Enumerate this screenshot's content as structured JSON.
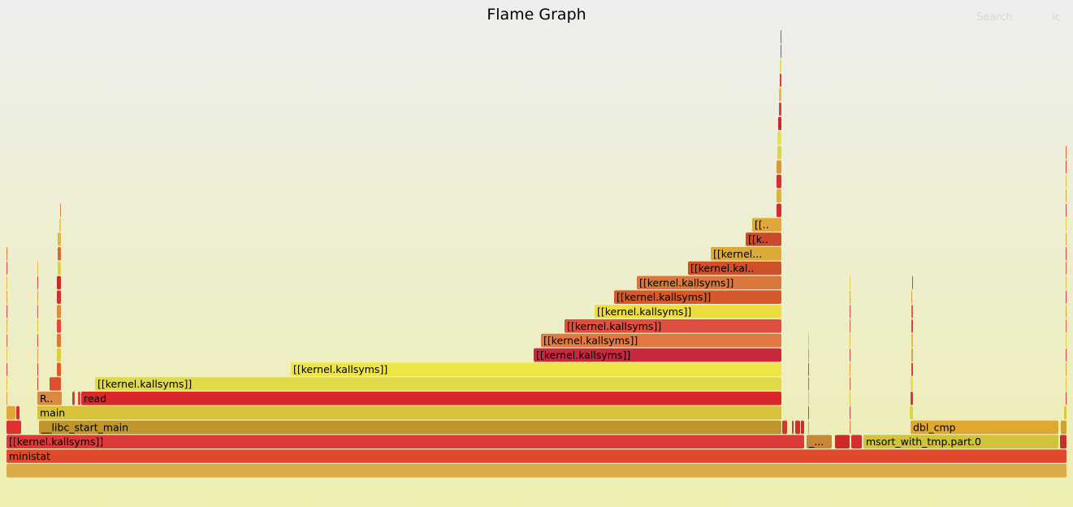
{
  "header": {
    "title": "Flame Graph",
    "search_label": "Search",
    "ic_label": "ic"
  },
  "chart_data": {
    "type": "flamegraph",
    "title": "Flame Graph",
    "total_width": 1305,
    "frames": [
      {
        "name": "",
        "level": 0,
        "start": 0,
        "width": 1305,
        "color": "#ddaa4a"
      },
      {
        "name": "ministat",
        "level": 1,
        "start": 0,
        "width": 1305,
        "color": "#e0492c"
      },
      {
        "name": "[[kernel.kallsyms]]",
        "level": 2,
        "start": 0,
        "width": 982,
        "color": "#dc3a3a"
      },
      {
        "name": "_...",
        "level": 2,
        "start": 985,
        "width": 31,
        "color": "#c8863a"
      },
      {
        "name": "",
        "level": 2,
        "start": 1020,
        "width": 18,
        "color": "#cc2a2a"
      },
      {
        "name": "",
        "level": 2,
        "start": 1040,
        "width": 13,
        "color": "#d23030"
      },
      {
        "name": "msort_with_tmp.part.0",
        "level": 2,
        "start": 1055,
        "width": 240,
        "color": "#d0c23a"
      },
      {
        "name": "",
        "level": 2,
        "start": 1297,
        "width": 8,
        "color": "#c83030"
      },
      {
        "name": "",
        "level": 3,
        "start": 0,
        "width": 18,
        "color": "#e03030"
      },
      {
        "name": "__libc_start_main",
        "level": 3,
        "start": 40,
        "width": 914,
        "color": "#bf962e"
      },
      {
        "name": "",
        "level": 3,
        "start": 955,
        "width": 6,
        "color": "#cc3a2a"
      },
      {
        "name": "",
        "level": 3,
        "start": 967,
        "width": 2,
        "color": "#d04030"
      },
      {
        "name": "",
        "level": 3,
        "start": 971,
        "width": 6,
        "color": "#d03028"
      },
      {
        "name": "",
        "level": 3,
        "start": 978,
        "width": 4,
        "color": "#c83028"
      },
      {
        "name": "dbl_cmp",
        "level": 3,
        "start": 1113,
        "width": 182,
        "color": "#dfa832"
      },
      {
        "name": "",
        "level": 3,
        "start": 1298,
        "width": 7,
        "color": "#d0a232"
      },
      {
        "name": "",
        "level": 4,
        "start": 0,
        "width": 11,
        "color": "#e0a838"
      },
      {
        "name": "",
        "level": 4,
        "start": 12,
        "width": 4,
        "color": "#d83030"
      },
      {
        "name": "main",
        "level": 4,
        "start": 38,
        "width": 916,
        "color": "#d8c23a"
      },
      {
        "name": "",
        "level": 4,
        "start": 1112,
        "width": 4,
        "color": "#d8d84a"
      },
      {
        "name": "",
        "level": 4,
        "start": 1302,
        "width": 3,
        "color": "#d8c83a"
      },
      {
        "name": "R..",
        "level": 5,
        "start": 38,
        "width": 30,
        "color": "#d88a42"
      },
      {
        "name": "",
        "level": 5,
        "start": 81,
        "width": 3,
        "color": "#d04030"
      },
      {
        "name": "",
        "level": 5,
        "start": 88,
        "width": 3,
        "color": "#d84838"
      },
      {
        "name": "read",
        "level": 5,
        "start": 92,
        "width": 862,
        "color": "#d8282c"
      },
      {
        "name": "",
        "level": 5,
        "start": 1113,
        "width": 3,
        "color": "#d83838"
      },
      {
        "name": "",
        "level": 5,
        "start": 1304,
        "width": 1,
        "color": "#d04030"
      },
      {
        "name": "",
        "level": 6,
        "start": 53,
        "width": 14,
        "color": "#dc5030"
      },
      {
        "name": "[[kernel.kallsyms]]",
        "level": 6,
        "start": 109,
        "width": 845,
        "color": "#e0da48"
      },
      {
        "name": "",
        "level": 6,
        "start": 1113,
        "width": 3,
        "color": "#e8e048"
      },
      {
        "name": "[[kernel.kallsyms]]",
        "level": 7,
        "start": 350,
        "width": 604,
        "color": "#eee446"
      },
      {
        "name": "[[kernel.kallsyms]]",
        "level": 8,
        "start": 649,
        "width": 305,
        "color": "#c8283c"
      },
      {
        "name": "[[kernel.kallsyms]]",
        "level": 9,
        "start": 658,
        "width": 296,
        "color": "#e07a42"
      },
      {
        "name": "[[kernel.kallsyms]]",
        "level": 10,
        "start": 687,
        "width": 267,
        "color": "#e04e40"
      },
      {
        "name": "[[kernel.kallsyms]]",
        "level": 11,
        "start": 724,
        "width": 230,
        "color": "#eedd40"
      },
      {
        "name": "[[kernel.kallsyms]]",
        "level": 12,
        "start": 748,
        "width": 206,
        "color": "#d45a2e"
      },
      {
        "name": "[[kernel.kallsyms]]",
        "level": 13,
        "start": 776,
        "width": 178,
        "color": "#d8783e"
      },
      {
        "name": "[[kernel.kal..",
        "level": 14,
        "start": 839,
        "width": 115,
        "color": "#d0502a"
      },
      {
        "name": "[[kernel...",
        "level": 15,
        "start": 867,
        "width": 87,
        "color": "#dcaa36"
      },
      {
        "name": "[[k..",
        "level": 16,
        "start": 910,
        "width": 44,
        "color": "#cc4a2c"
      },
      {
        "name": "[[..",
        "level": 17,
        "start": 918,
        "width": 36,
        "color": "#e0a838"
      },
      {
        "name": "",
        "level": 18,
        "start": 948,
        "width": 6,
        "color": "#d42c30"
      },
      {
        "name": "",
        "level": 19,
        "start": 948,
        "width": 6,
        "color": "#e0b040"
      },
      {
        "name": "",
        "level": 20,
        "start": 948,
        "width": 6,
        "color": "#d83030"
      },
      {
        "name": "",
        "level": 21,
        "start": 948,
        "width": 6,
        "color": "#d89838"
      },
      {
        "name": "",
        "level": 22,
        "start": 949,
        "width": 5,
        "color": "#e0d440"
      },
      {
        "name": "",
        "level": 23,
        "start": 949,
        "width": 5,
        "color": "#e8e04a"
      },
      {
        "name": "",
        "level": 24,
        "start": 950,
        "width": 4,
        "color": "#c82830"
      },
      {
        "name": "",
        "level": 25,
        "start": 951,
        "width": 3,
        "color": "#d84040"
      },
      {
        "name": "",
        "level": 26,
        "start": 951,
        "width": 3,
        "color": "#e0c040"
      },
      {
        "name": "",
        "level": 27,
        "start": 952,
        "width": 2,
        "color": "#d83a3a"
      },
      {
        "name": "",
        "level": 28,
        "start": 952,
        "width": 2,
        "color": "#e8e050"
      },
      {
        "name": "",
        "level": 29,
        "start": 953,
        "width": 1,
        "color": "#d04030"
      },
      {
        "name": "",
        "level": 30,
        "start": 953,
        "width": 1,
        "color": "#d84040"
      },
      {
        "name": "",
        "level": 7,
        "start": 62,
        "width": 5,
        "color": "#e05a30"
      },
      {
        "name": "",
        "level": 8,
        "start": 62,
        "width": 5,
        "color": "#d8d040"
      },
      {
        "name": "",
        "level": 9,
        "start": 62,
        "width": 5,
        "color": "#d87a3a"
      },
      {
        "name": "",
        "level": 10,
        "start": 62,
        "width": 5,
        "color": "#e04838"
      },
      {
        "name": "",
        "level": 11,
        "start": 62,
        "width": 5,
        "color": "#d89040"
      },
      {
        "name": "",
        "level": 12,
        "start": 62,
        "width": 5,
        "color": "#d03030"
      },
      {
        "name": "",
        "level": 13,
        "start": 62,
        "width": 5,
        "color": "#c82a2a"
      },
      {
        "name": "",
        "level": 14,
        "start": 63,
        "width": 4,
        "color": "#e0d040"
      },
      {
        "name": "",
        "level": 15,
        "start": 63,
        "width": 4,
        "color": "#d86a38"
      },
      {
        "name": "",
        "level": 16,
        "start": 63,
        "width": 4,
        "color": "#e0b840"
      },
      {
        "name": "",
        "level": 17,
        "start": 65,
        "width": 2,
        "color": "#e8d048"
      },
      {
        "name": "",
        "level": 18,
        "start": 66,
        "width": 1,
        "color": "#d88040"
      },
      {
        "name": "",
        "level": 5,
        "start": 0,
        "width": 1,
        "color": "#e0a040"
      },
      {
        "name": "",
        "level": 6,
        "start": 0,
        "width": 1,
        "color": "#d8c040"
      },
      {
        "name": "",
        "level": 7,
        "start": 0,
        "width": 1,
        "color": "#e04040"
      },
      {
        "name": "",
        "level": 8,
        "start": 0,
        "width": 1,
        "color": "#e0d048"
      },
      {
        "name": "",
        "level": 9,
        "start": 0,
        "width": 1,
        "color": "#d86040"
      },
      {
        "name": "",
        "level": 10,
        "start": 0,
        "width": 1,
        "color": "#e0b040"
      },
      {
        "name": "",
        "level": 11,
        "start": 0,
        "width": 1,
        "color": "#d04040"
      },
      {
        "name": "",
        "level": 12,
        "start": 0,
        "width": 1,
        "color": "#e0a040"
      },
      {
        "name": "",
        "level": 13,
        "start": 0,
        "width": 1,
        "color": "#d8c040"
      },
      {
        "name": "",
        "level": 14,
        "start": 0,
        "width": 1,
        "color": "#e04040"
      },
      {
        "name": "",
        "level": 15,
        "start": 0,
        "width": 1,
        "color": "#d88040"
      },
      {
        "name": "",
        "level": 6,
        "start": 38,
        "width": 1,
        "color": "#d04030"
      },
      {
        "name": "",
        "level": 7,
        "start": 38,
        "width": 1,
        "color": "#d83a30"
      },
      {
        "name": "",
        "level": 8,
        "start": 38,
        "width": 1,
        "color": "#d8a040"
      },
      {
        "name": "",
        "level": 9,
        "start": 38,
        "width": 1,
        "color": "#e04838"
      },
      {
        "name": "",
        "level": 10,
        "start": 38,
        "width": 1,
        "color": "#d8c040"
      },
      {
        "name": "",
        "level": 11,
        "start": 38,
        "width": 1,
        "color": "#d06040"
      },
      {
        "name": "",
        "level": 12,
        "start": 38,
        "width": 1,
        "color": "#e0a040"
      },
      {
        "name": "",
        "level": 13,
        "start": 38,
        "width": 1,
        "color": "#d84040"
      },
      {
        "name": "",
        "level": 14,
        "start": 38,
        "width": 1,
        "color": "#e0c048"
      },
      {
        "name": "",
        "level": 3,
        "start": 987,
        "width": 1,
        "color": "#e0a040"
      },
      {
        "name": "",
        "level": 4,
        "start": 987,
        "width": 1,
        "color": "#d84040"
      },
      {
        "name": "",
        "level": 5,
        "start": 987,
        "width": 1,
        "color": "#e0c040"
      },
      {
        "name": "",
        "level": 6,
        "start": 987,
        "width": 1,
        "color": "#d86040"
      },
      {
        "name": "",
        "level": 7,
        "start": 987,
        "width": 1,
        "color": "#e04040"
      },
      {
        "name": "",
        "level": 8,
        "start": 987,
        "width": 1,
        "color": "#d8a040"
      },
      {
        "name": "",
        "level": 9,
        "start": 987,
        "width": 1,
        "color": "#e0d048"
      },
      {
        "name": "",
        "level": 3,
        "start": 1038,
        "width": 1,
        "color": "#e08040"
      },
      {
        "name": "",
        "level": 4,
        "start": 1038,
        "width": 1,
        "color": "#d84040"
      },
      {
        "name": "",
        "level": 5,
        "start": 1038,
        "width": 1,
        "color": "#e0c040"
      },
      {
        "name": "",
        "level": 6,
        "start": 1038,
        "width": 1,
        "color": "#d86040"
      },
      {
        "name": "",
        "level": 7,
        "start": 1038,
        "width": 1,
        "color": "#e0a040"
      },
      {
        "name": "",
        "level": 8,
        "start": 1038,
        "width": 1,
        "color": "#d84040"
      },
      {
        "name": "",
        "level": 9,
        "start": 1038,
        "width": 1,
        "color": "#e0c048"
      },
      {
        "name": "",
        "level": 10,
        "start": 1038,
        "width": 1,
        "color": "#d86040"
      },
      {
        "name": "",
        "level": 11,
        "start": 1038,
        "width": 1,
        "color": "#e04040"
      },
      {
        "name": "",
        "level": 12,
        "start": 1038,
        "width": 1,
        "color": "#d8a040"
      },
      {
        "name": "",
        "level": 13,
        "start": 1038,
        "width": 1,
        "color": "#e0d048"
      },
      {
        "name": "",
        "level": 7,
        "start": 1114,
        "width": 2,
        "color": "#d84040"
      },
      {
        "name": "",
        "level": 8,
        "start": 1114,
        "width": 2,
        "color": "#e0a040"
      },
      {
        "name": "",
        "level": 9,
        "start": 1114,
        "width": 2,
        "color": "#d8c040"
      },
      {
        "name": "",
        "level": 10,
        "start": 1114,
        "width": 2,
        "color": "#e04040"
      },
      {
        "name": "",
        "level": 11,
        "start": 1114,
        "width": 2,
        "color": "#d86040"
      },
      {
        "name": "",
        "level": 12,
        "start": 1114,
        "width": 1,
        "color": "#e0a040"
      },
      {
        "name": "",
        "level": 13,
        "start": 1115,
        "width": 1,
        "color": "#d84040"
      },
      {
        "name": "",
        "level": 6,
        "start": 1304,
        "width": 1,
        "color": "#e0c040"
      },
      {
        "name": "",
        "level": 7,
        "start": 1304,
        "width": 1,
        "color": "#d8a040"
      },
      {
        "name": "",
        "level": 8,
        "start": 1304,
        "width": 1,
        "color": "#e04040"
      },
      {
        "name": "",
        "level": 9,
        "start": 1304,
        "width": 1,
        "color": "#d8d048"
      },
      {
        "name": "",
        "level": 10,
        "start": 1304,
        "width": 1,
        "color": "#d86040"
      },
      {
        "name": "",
        "level": 11,
        "start": 1304,
        "width": 1,
        "color": "#e0a040"
      },
      {
        "name": "",
        "level": 12,
        "start": 1304,
        "width": 1,
        "color": "#d84040"
      },
      {
        "name": "",
        "level": 13,
        "start": 1304,
        "width": 1,
        "color": "#e0c048"
      },
      {
        "name": "",
        "level": 14,
        "start": 1304,
        "width": 1,
        "color": "#d86040"
      },
      {
        "name": "",
        "level": 15,
        "start": 1304,
        "width": 1,
        "color": "#e04040"
      },
      {
        "name": "",
        "level": 16,
        "start": 1304,
        "width": 1,
        "color": "#d8a040"
      },
      {
        "name": "",
        "level": 17,
        "start": 1304,
        "width": 1,
        "color": "#e0d048"
      },
      {
        "name": "",
        "level": 18,
        "start": 1304,
        "width": 1,
        "color": "#d84040"
      },
      {
        "name": "",
        "level": 19,
        "start": 1304,
        "width": 1,
        "color": "#e0a040"
      },
      {
        "name": "",
        "level": 20,
        "start": 1304,
        "width": 1,
        "color": "#d8c040"
      },
      {
        "name": "",
        "level": 21,
        "start": 1304,
        "width": 1,
        "color": "#e04040"
      },
      {
        "name": "",
        "level": 22,
        "start": 1304,
        "width": 1,
        "color": "#d86040"
      }
    ]
  }
}
